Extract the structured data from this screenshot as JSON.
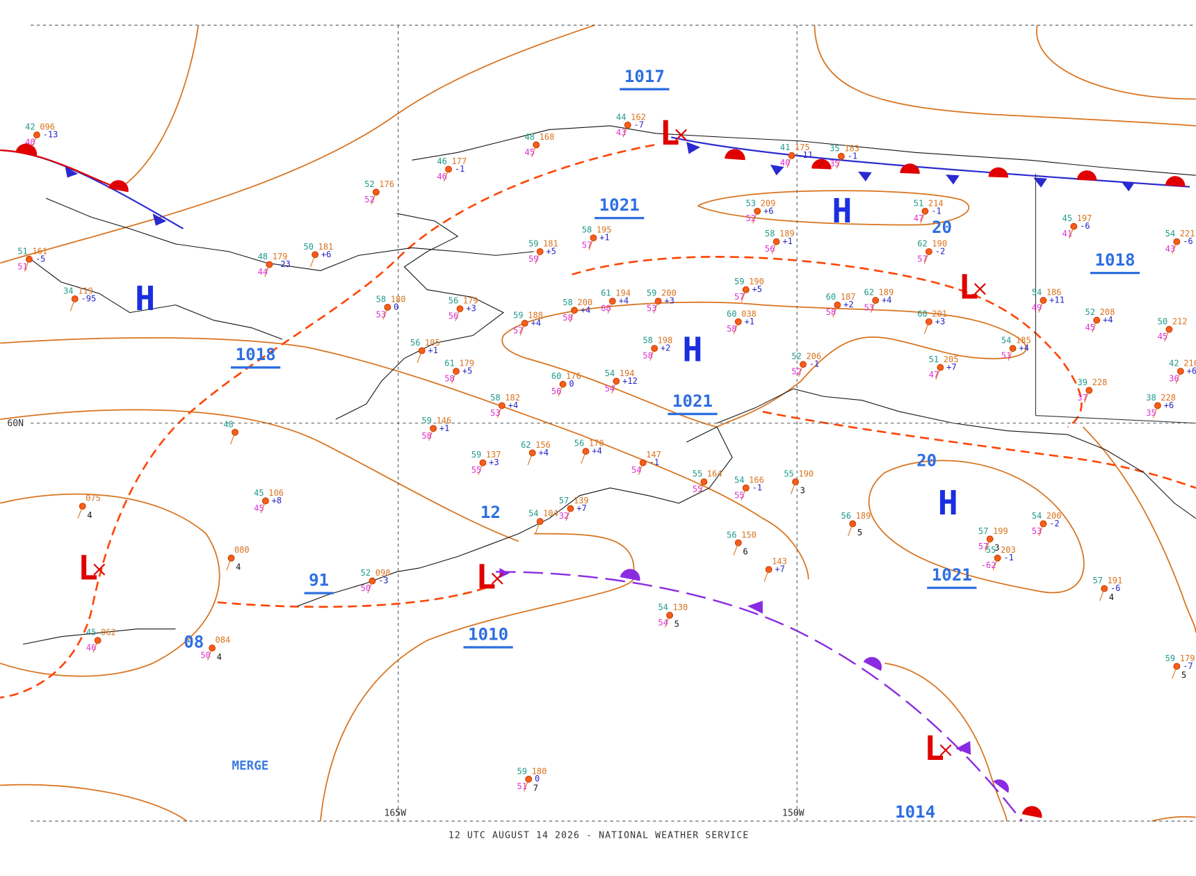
{
  "map": {
    "footer": "12 UTC AUGUST 14 2026 - NATIONAL WEATHER SERVICE",
    "grid_labels": [
      "60N",
      "165W",
      "150W"
    ],
    "note": "MERGE",
    "isobar_labels": [
      "1017",
      "1021",
      "1018",
      "1021",
      "1018",
      "1010",
      "1021",
      "91",
      "1014",
      "12",
      "08",
      "20",
      "20"
    ],
    "pressure_centers": [
      "H",
      "H",
      "H",
      "H",
      "L",
      "L",
      "L",
      "L",
      "L"
    ],
    "stations": [
      {
        "t": "42",
        "p": "096",
        "d": "40",
        "c": "-13"
      },
      {
        "t": "52",
        "p": "176",
        "d": "52"
      },
      {
        "t": "46",
        "p": "177",
        "d": "46",
        "c": "-1"
      },
      {
        "t": "48",
        "p": "168",
        "d": "45"
      },
      {
        "t": "44",
        "p": "162",
        "d": "43",
        "c": "-7"
      },
      {
        "t": "41",
        "p": "175",
        "d": "40",
        "c": "-11"
      },
      {
        "t": "35",
        "p": "183",
        "d": "35",
        "c": "-1"
      },
      {
        "t": "53",
        "p": "209",
        "d": "52",
        "c": "+6"
      },
      {
        "t": "51",
        "p": "214",
        "d": "47",
        "c": "-1"
      },
      {
        "t": "58",
        "p": "189",
        "d": "56",
        "c": "+1"
      },
      {
        "t": "62",
        "p": "190",
        "d": "57",
        "c": "-2"
      },
      {
        "t": "59",
        "p": "181",
        "d": "59",
        "c": "+5"
      },
      {
        "t": "58",
        "p": "195",
        "d": "57",
        "c": "+1"
      },
      {
        "t": "48",
        "p": "179",
        "d": "44",
        "c": "-23"
      },
      {
        "t": "50",
        "p": "181",
        "c": "+6"
      },
      {
        "t": "51",
        "p": "161",
        "d": "51",
        "c": "-5"
      },
      {
        "t": "34",
        "p": "119",
        "c": "-95"
      },
      {
        "t": "59",
        "p": "190",
        "d": "57",
        "c": "+5"
      },
      {
        "t": "54",
        "p": "186",
        "d": "49",
        "c": "+11"
      },
      {
        "t": "60",
        "p": "187",
        "d": "58",
        "c": "+2"
      },
      {
        "t": "62",
        "p": "189",
        "d": "53",
        "c": "+4"
      },
      {
        "t": "60",
        "p": "201",
        "c": "+3"
      },
      {
        "t": "51",
        "p": "205",
        "d": "47",
        "c": "+7"
      },
      {
        "t": "52",
        "p": "206",
        "d": "52",
        "c": "-1"
      },
      {
        "t": "60",
        "p": "038",
        "d": "58",
        "c": "+1"
      },
      {
        "t": "58",
        "p": "200",
        "d": "58",
        "c": "+4"
      },
      {
        "t": "61",
        "p": "194",
        "d": "60",
        "c": "+4"
      },
      {
        "t": "59",
        "p": "200",
        "d": "53",
        "c": "+3"
      },
      {
        "t": "59",
        "p": "188",
        "d": "57",
        "c": "+4"
      },
      {
        "t": "58",
        "p": "198",
        "d": "58",
        "c": "+2"
      },
      {
        "t": "56",
        "p": "179",
        "d": "56",
        "c": "+3"
      },
      {
        "t": "58",
        "p": "180",
        "d": "53",
        "c": "0"
      },
      {
        "t": "56",
        "p": "185",
        "c": "+1"
      },
      {
        "t": "61",
        "p": "179",
        "d": "58",
        "c": "+5"
      },
      {
        "t": "60",
        "p": "176",
        "d": "56",
        "c": "0"
      },
      {
        "t": "54",
        "p": "194",
        "d": "54",
        "c": "+12"
      },
      {
        "t": "54",
        "p": "185",
        "d": "51",
        "c": "+4"
      },
      {
        "t": "39",
        "p": "228",
        "d": "37"
      },
      {
        "t": "38",
        "p": "228",
        "d": "35",
        "c": "+6"
      },
      {
        "t": "42",
        "p": "216",
        "d": "36",
        "c": "+6"
      },
      {
        "t": "45",
        "p": "197",
        "d": "41",
        "c": "-6"
      },
      {
        "t": "54",
        "p": "221",
        "d": "43",
        "c": "-6"
      },
      {
        "t": "50",
        "p": "212",
        "d": "45"
      },
      {
        "t": "52",
        "p": "208",
        "d": "45",
        "c": "+4"
      },
      {
        "t": "58",
        "p": "182",
        "d": "53",
        "c": "+4"
      },
      {
        "t": "59",
        "p": "146",
        "d": "58",
        "c": "+1"
      },
      {
        "t": "59",
        "p": "137",
        "d": "55",
        "c": "+3"
      },
      {
        "t": "62",
        "p": "156",
        "c": "+4"
      },
      {
        "t": "56",
        "p": "170",
        "c": "+4"
      },
      {
        "p": "147",
        "d": "54",
        "c": "-1"
      },
      {
        "t": "55",
        "p": "164",
        "d": "55"
      },
      {
        "t": "54",
        "p": "166",
        "d": "55",
        "c": "-1"
      },
      {
        "t": "55",
        "p": "190",
        "n": "3"
      },
      {
        "t": "57",
        "p": "139",
        "d": "32",
        "c": "+7"
      },
      {
        "t": "54",
        "p": "104"
      },
      {
        "t": "56",
        "p": "189",
        "n": "5"
      },
      {
        "t": "57",
        "p": "199",
        "d": "57",
        "n": "3"
      },
      {
        "t": "55",
        "p": "203",
        "d": "-62",
        "c": "-1"
      },
      {
        "t": "54",
        "p": "200",
        "d": "53",
        "c": "-2"
      },
      {
        "t": "57",
        "p": "191",
        "n": "4",
        "c": "-6"
      },
      {
        "t": "56",
        "p": "150",
        "n": "6"
      },
      {
        "p": "143",
        "c": "+7"
      },
      {
        "t": "54",
        "p": "130",
        "d": "54",
        "n": "5"
      },
      {
        "t": "45",
        "p": "106",
        "d": "45",
        "c": "+8"
      },
      {
        "p": "075",
        "n": "4"
      },
      {
        "p": "080",
        "n": "4"
      },
      {
        "p": "084",
        "d": "50",
        "n": "4"
      },
      {
        "t": "52",
        "p": "098",
        "d": "50",
        "c": "-3"
      },
      {
        "t": "45",
        "p": "062",
        "d": "46"
      },
      {
        "t": "59",
        "p": "180",
        "d": "51",
        "n": "7",
        "c": "0"
      },
      {
        "t": "48"
      },
      {
        "t": "59",
        "p": "179",
        "n": "5",
        "c": "-7"
      }
    ]
  }
}
